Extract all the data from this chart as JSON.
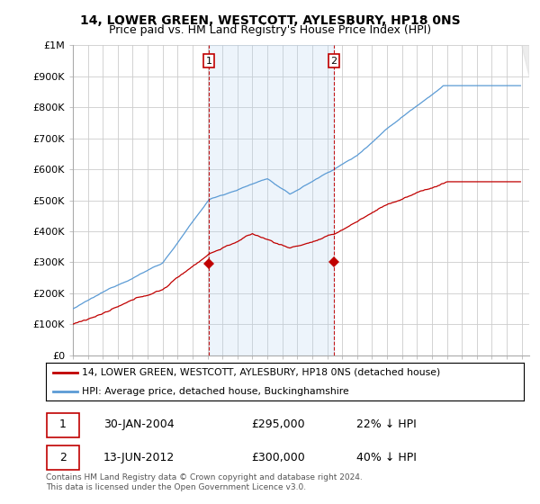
{
  "title": "14, LOWER GREEN, WESTCOTT, AYLESBURY, HP18 0NS",
  "subtitle": "Price paid vs. HM Land Registry's House Price Index (HPI)",
  "ytick_values": [
    0,
    100000,
    200000,
    300000,
    400000,
    500000,
    600000,
    700000,
    800000,
    900000,
    1000000
  ],
  "ylim": [
    0,
    1000000
  ],
  "xlim_start": 1995.0,
  "xlim_end": 2025.5,
  "hpi_color": "#5b9bd5",
  "price_color": "#c00000",
  "dashed_color": "#c00000",
  "shade_color": "#ddeeff",
  "sale1_date": 2004.08,
  "sale1_price": 295000,
  "sale2_date": 2012.45,
  "sale2_price": 300000,
  "legend_line1": "14, LOWER GREEN, WESTCOTT, AYLESBURY, HP18 0NS (detached house)",
  "legend_line2": "HPI: Average price, detached house, Buckinghamshire",
  "footnote": "Contains HM Land Registry data © Crown copyright and database right 2024.\nThis data is licensed under the Open Government Licence v3.0.",
  "background_color": "#ffffff",
  "plot_bg_color": "#ffffff",
  "grid_color": "#cccccc"
}
